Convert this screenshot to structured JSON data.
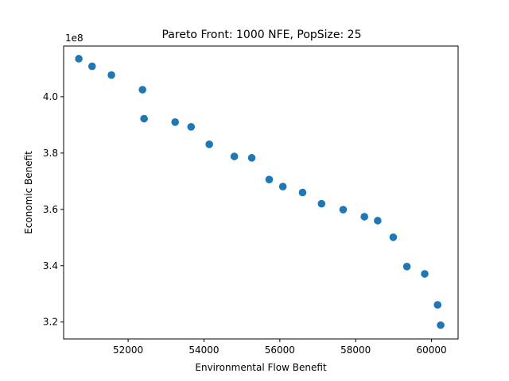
{
  "chart_data": {
    "type": "scatter",
    "title": "Pareto Front: 1000 NFE, PopSize: 25",
    "xlabel": "Environmental Flow Benefit",
    "ylabel": "Economic Benefit",
    "y_offset_label": "1e8",
    "xlim": [
      50300,
      60700
    ],
    "ylim": [
      3.14,
      4.18
    ],
    "x_ticks": [
      52000,
      54000,
      56000,
      58000,
      60000
    ],
    "x_tick_labels": [
      "52000",
      "54000",
      "56000",
      "58000",
      "60000"
    ],
    "y_ticks": [
      3.2,
      3.4,
      3.6,
      3.8,
      4.0
    ],
    "y_tick_labels": [
      "3.2",
      "3.4",
      "3.6",
      "3.8",
      "4.0"
    ],
    "grid": false,
    "marker_color": "#1f77b4",
    "points": [
      {
        "x": 50700,
        "y": 4.135
      },
      {
        "x": 51050,
        "y": 4.108
      },
      {
        "x": 51560,
        "y": 4.077
      },
      {
        "x": 52380,
        "y": 4.025
      },
      {
        "x": 52420,
        "y": 3.922
      },
      {
        "x": 53240,
        "y": 3.91
      },
      {
        "x": 53660,
        "y": 3.893
      },
      {
        "x": 54140,
        "y": 3.831
      },
      {
        "x": 54800,
        "y": 3.788
      },
      {
        "x": 55260,
        "y": 3.783
      },
      {
        "x": 55720,
        "y": 3.706
      },
      {
        "x": 56080,
        "y": 3.681
      },
      {
        "x": 56600,
        "y": 3.66
      },
      {
        "x": 57100,
        "y": 3.62
      },
      {
        "x": 57670,
        "y": 3.599
      },
      {
        "x": 58230,
        "y": 3.574
      },
      {
        "x": 58580,
        "y": 3.56
      },
      {
        "x": 58990,
        "y": 3.501
      },
      {
        "x": 59350,
        "y": 3.397
      },
      {
        "x": 59820,
        "y": 3.371
      },
      {
        "x": 60160,
        "y": 3.261
      },
      {
        "x": 60240,
        "y": 3.189
      }
    ]
  }
}
